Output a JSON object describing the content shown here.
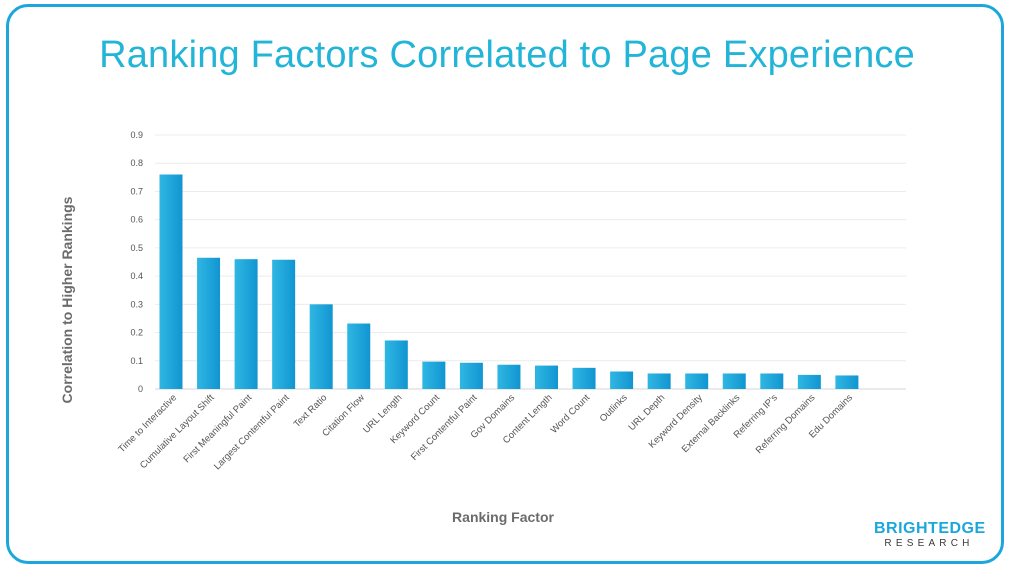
{
  "header": {
    "title": "Ranking Factors Correlated to Page Experience"
  },
  "logo": {
    "main": "BRIGHTEDGE",
    "sub": "RESEARCH"
  },
  "colors": {
    "accent": "#1ba7dc",
    "bar_top": "#2fb7e2",
    "bar_bottom": "#1195d2",
    "title": "#23b5d8"
  },
  "chart_data": {
    "type": "bar",
    "title": "Ranking Factors Correlated to Page Experience",
    "xlabel": "Ranking Factor",
    "ylabel": "Correlation to Higher Rankings",
    "ylim": [
      0,
      0.9
    ],
    "yticks": [
      "0",
      "0.1",
      "0.2",
      "0.3",
      "0.4",
      "0.5",
      "0.6",
      "0.7",
      "0.8",
      "0.9"
    ],
    "grid": true,
    "categories": [
      "Time to Interactive",
      "Cumulative Layout Shift",
      "First Meaningful Paint",
      "Largest Contentful Paint",
      "Text Ratio",
      "Citation Flow",
      "URL Length",
      "Keyword Count",
      "First Contentful Paint",
      "Gov Domains",
      "Content Length",
      "Word Count",
      "Outlinks",
      "URL Depth",
      "Keyword Density",
      "External Backlinks",
      "Referring IP's",
      "Referring Domains",
      "Edu Domains"
    ],
    "values": [
      0.76,
      0.465,
      0.46,
      0.458,
      0.3,
      0.232,
      0.172,
      0.097,
      0.093,
      0.086,
      0.083,
      0.075,
      0.062,
      0.055,
      0.055,
      0.055,
      0.055,
      0.05,
      0.048
    ]
  }
}
